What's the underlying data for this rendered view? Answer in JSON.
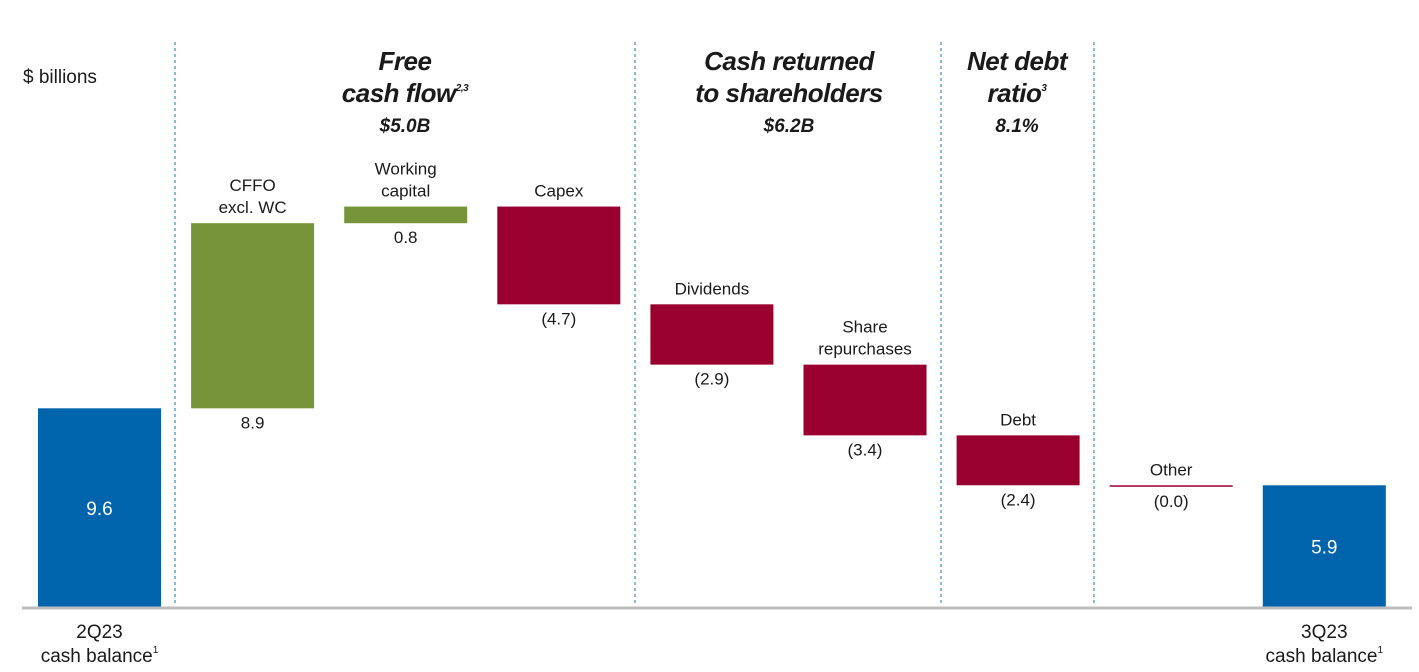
{
  "unit_label": "$ billions",
  "colors": {
    "balance": "#0064ad",
    "positive": "#76943a",
    "negative": "#990030",
    "divider": "#3a8fc0",
    "baseline": "#bdbdbd"
  },
  "sections": [
    {
      "title_lines": [
        "Free",
        "cash flow"
      ],
      "sup": "2,3",
      "subtitle": "$5.0B"
    },
    {
      "title_lines": [
        "Cash returned",
        "to shareholders"
      ],
      "sup": "",
      "subtitle": "$6.2B"
    },
    {
      "title_lines": [
        "Net debt",
        "ratio"
      ],
      "sup": "3",
      "subtitle": "8.1%"
    }
  ],
  "chart_data": {
    "type": "waterfall",
    "unit": "$ billions",
    "steps": [
      {
        "name_lines": [
          "2Q23",
          "cash balance"
        ],
        "name_sup": "1",
        "value": 9.6,
        "value_label": "9.6",
        "kind": "total"
      },
      {
        "name_lines": [
          "CFFO",
          "excl. WC"
        ],
        "value": 8.9,
        "value_label": "8.9",
        "kind": "increase"
      },
      {
        "name_lines": [
          "Working",
          "capital"
        ],
        "value": 0.8,
        "value_label": "0.8",
        "kind": "increase"
      },
      {
        "name_lines": [
          "Capex"
        ],
        "value": -4.7,
        "value_label": "(4.7)",
        "kind": "decrease"
      },
      {
        "name_lines": [
          "Dividends"
        ],
        "value": -2.9,
        "value_label": "(2.9)",
        "kind": "decrease"
      },
      {
        "name_lines": [
          "Share",
          "repurchases"
        ],
        "value": -3.4,
        "value_label": "(3.4)",
        "kind": "decrease"
      },
      {
        "name_lines": [
          "Debt"
        ],
        "value": -2.4,
        "value_label": "(2.4)",
        "kind": "decrease"
      },
      {
        "name_lines": [
          "Other"
        ],
        "value": 0.0,
        "value_label": "(0.0)",
        "kind": "decrease"
      },
      {
        "name_lines": [
          "3Q23",
          "cash balance"
        ],
        "name_sup": "1",
        "value": 5.9,
        "value_label": "5.9",
        "kind": "total"
      }
    ],
    "grid": false,
    "legend": "none"
  }
}
